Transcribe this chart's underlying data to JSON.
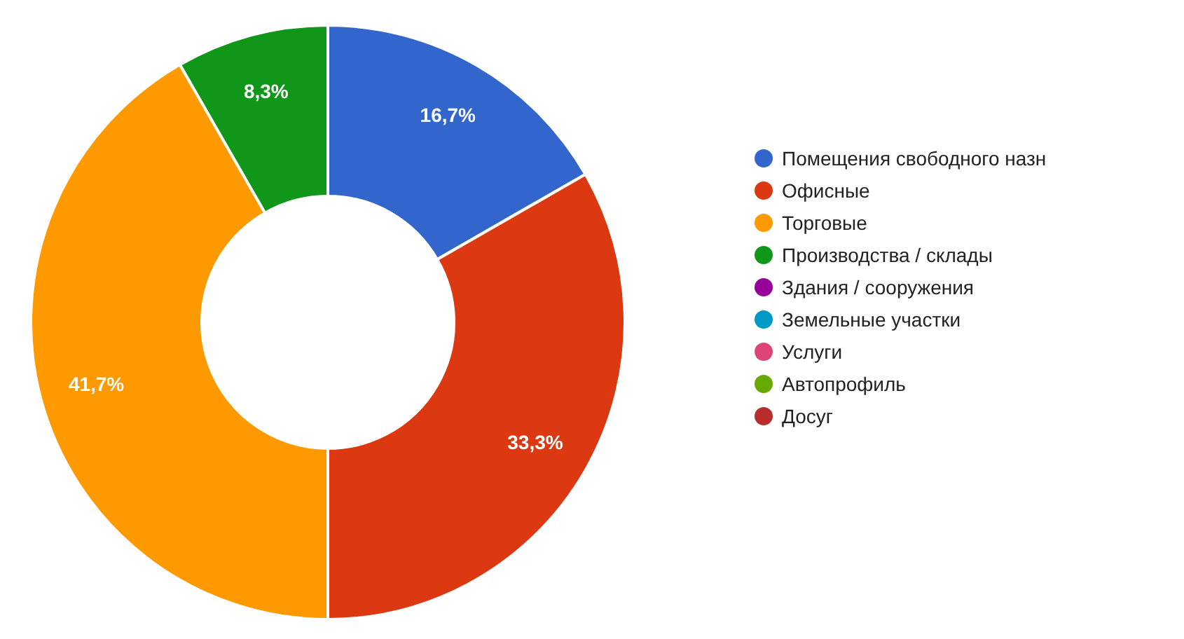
{
  "chart_data": {
    "type": "donut",
    "categories": [
      "Помещения свободного назн",
      "Офисные",
      "Торговые",
      "Производства / склады",
      "Здания / сооружения",
      "Земельные участки",
      "Услуги",
      "Автопрофиль",
      "Досуг"
    ],
    "values": [
      16.7,
      33.3,
      41.7,
      8.3,
      0,
      0,
      0,
      0,
      0
    ],
    "value_labels": [
      "16,7%",
      "33,3%",
      "41,7%",
      "8,3%",
      null,
      null,
      null,
      null,
      null
    ],
    "colors": [
      "#3366cc",
      "#dc3912",
      "#ff9900",
      "#109618",
      "#990099",
      "#0099c6",
      "#dd4477",
      "#66aa00",
      "#b82e2e"
    ],
    "legend": "right"
  }
}
